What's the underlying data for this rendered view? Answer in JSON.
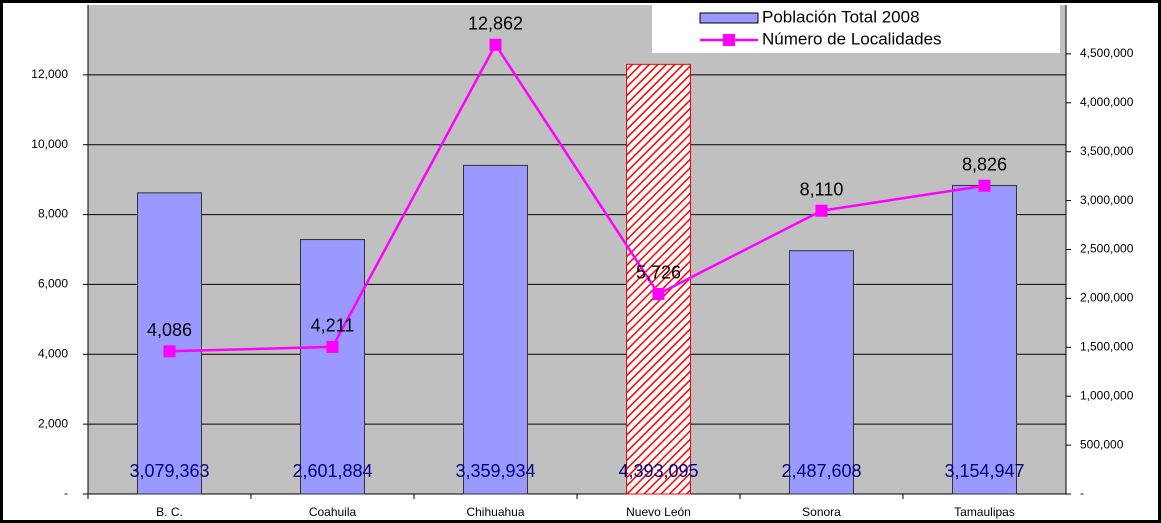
{
  "chart_data": {
    "type": "bar_line",
    "categories": [
      "B. C.",
      "Coahuila",
      "Chihuahua",
      "Nuevo León",
      "Sonora",
      "Tamaulipas"
    ],
    "series": [
      {
        "name": "Población Total 2008",
        "type": "bar",
        "axis": "y2",
        "color": "#9999ff",
        "values": [
          3079363,
          2601884,
          3359934,
          4393095,
          2487608,
          3154947
        ],
        "value_labels": [
          "3,079,363",
          "2,601,884",
          "3,359,934",
          "4,393,095",
          "2,487,608",
          "3,154,947"
        ],
        "hatched": [
          false,
          false,
          false,
          true,
          false,
          false
        ],
        "hatch_color": "#ff0000"
      },
      {
        "name": "Número de Localidades",
        "type": "line",
        "axis": "y",
        "color": "#ff00ff",
        "values": [
          4086,
          4211,
          12862,
          5726,
          8110,
          8826
        ],
        "value_labels": [
          "4,086",
          "4,211",
          "12,862",
          "5,726",
          "8,110",
          "8,826"
        ]
      }
    ],
    "ylim": [
      0,
      14000
    ],
    "yticks": [
      {
        "value": 0,
        "label": "-"
      },
      {
        "value": 2000,
        "label": "2,000"
      },
      {
        "value": 4000,
        "label": "4,000"
      },
      {
        "value": 6000,
        "label": "6,000"
      },
      {
        "value": 8000,
        "label": "8,000"
      },
      {
        "value": 10000,
        "label": "10,000"
      },
      {
        "value": 12000,
        "label": "12,000"
      }
    ],
    "y2lim": [
      0,
      5000000
    ],
    "y2ticks": [
      {
        "value": 0,
        "label": "-"
      },
      {
        "value": 500000,
        "label": "500,000"
      },
      {
        "value": 1000000,
        "label": "1,000,000"
      },
      {
        "value": 1500000,
        "label": "1,500,000"
      },
      {
        "value": 2000000,
        "label": "2,000,000"
      },
      {
        "value": 2500000,
        "label": "2,500,000"
      },
      {
        "value": 3000000,
        "label": "3,000,000"
      },
      {
        "value": 3500000,
        "label": "3,500,000"
      },
      {
        "value": 4000000,
        "label": "4,000,000"
      },
      {
        "value": 4500000,
        "label": "4,500,000"
      }
    ],
    "grid": true,
    "legend": "upper right"
  }
}
